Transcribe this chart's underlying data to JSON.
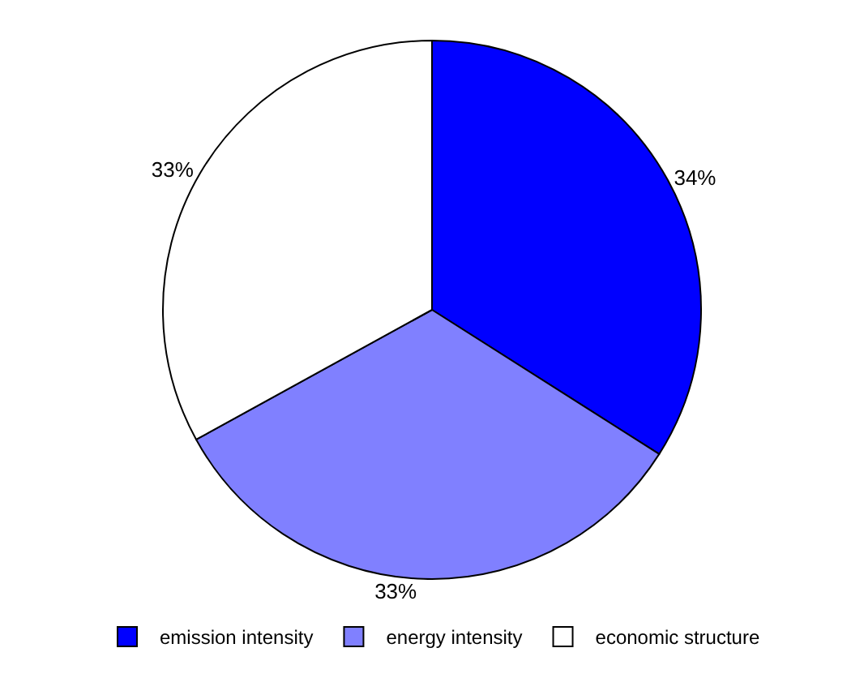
{
  "chart_data": {
    "type": "pie",
    "categories": [
      "emission intensity",
      "energy intensity",
      "economic structure"
    ],
    "values": [
      34,
      33,
      33
    ],
    "value_labels": [
      "34%",
      "33%",
      "33%"
    ],
    "colors": [
      "#0000ff",
      "#8080ff",
      "#ffffff"
    ],
    "legend": "bottom"
  }
}
